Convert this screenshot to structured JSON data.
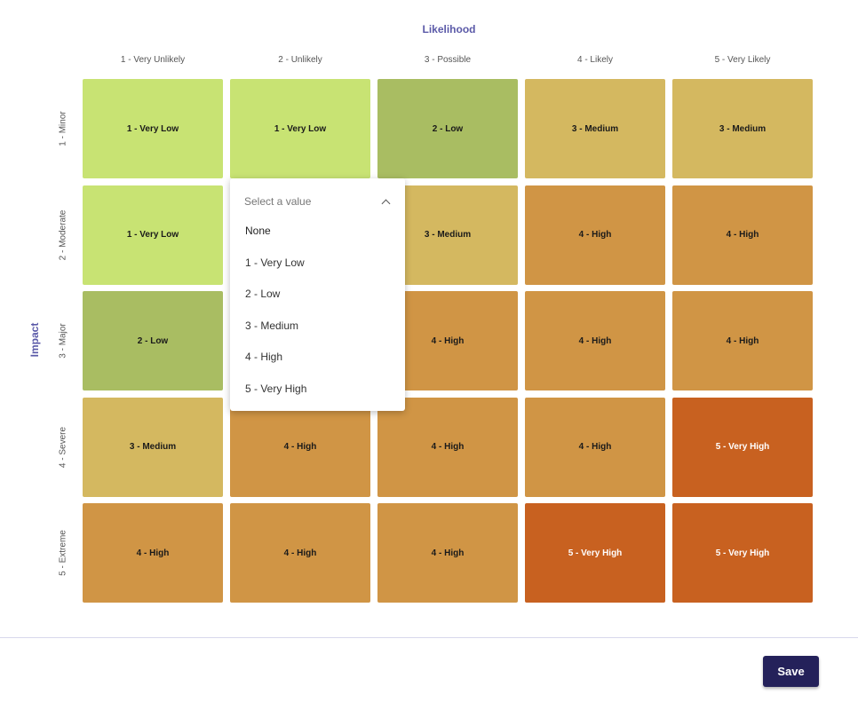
{
  "axis": {
    "x_title": "Likelihood",
    "y_title": "Impact"
  },
  "likelihood_levels": [
    "1 - Very Unlikely",
    "2 - Unlikely",
    "3 - Possible",
    "4 - Likely",
    "5 - Very Likely"
  ],
  "impact_levels": [
    "1 - Minor",
    "2 - Moderate",
    "3 - Major",
    "4 - Severe",
    "5 - Extreme"
  ],
  "colors": {
    "very_low": "#c8e373",
    "low": "#a9bd62",
    "medium": "#d4b860",
    "high": "#d09545",
    "very_high": "#c86120"
  },
  "matrix": [
    [
      {
        "label": "1 - Very Low",
        "color": "#c8e373"
      },
      {
        "label": "1 - Very Low",
        "color": "#c8e373"
      },
      {
        "label": "2 - Low",
        "color": "#a9bd62"
      },
      {
        "label": "3 - Medium",
        "color": "#d4b860"
      },
      {
        "label": "3 - Medium",
        "color": "#d4b860"
      }
    ],
    [
      {
        "label": "1 - Very Low",
        "color": "#c8e373"
      },
      {
        "label": "",
        "color": "#c8e373"
      },
      {
        "label": "3 - Medium",
        "color": "#d4b860"
      },
      {
        "label": "4 - High",
        "color": "#d09545"
      },
      {
        "label": "4 - High",
        "color": "#d09545"
      }
    ],
    [
      {
        "label": "2 - Low",
        "color": "#a9bd62"
      },
      {
        "label": "",
        "color": "#a9bd62"
      },
      {
        "label": "4 - High",
        "color": "#d09545"
      },
      {
        "label": "4 - High",
        "color": "#d09545"
      },
      {
        "label": "4 - High",
        "color": "#d09545"
      }
    ],
    [
      {
        "label": "3 - Medium",
        "color": "#d4b860"
      },
      {
        "label": "4 - High",
        "color": "#d09545"
      },
      {
        "label": "4 - High",
        "color": "#d09545"
      },
      {
        "label": "4 - High",
        "color": "#d09545"
      },
      {
        "label": "5 - Very High",
        "color": "#c86120"
      }
    ],
    [
      {
        "label": "4 - High",
        "color": "#d09545"
      },
      {
        "label": "4 - High",
        "color": "#d09545"
      },
      {
        "label": "4 - High",
        "color": "#d09545"
      },
      {
        "label": "5 - Very High",
        "color": "#c86120"
      },
      {
        "label": "5 - Very High",
        "color": "#c86120"
      }
    ]
  ],
  "dropdown": {
    "placeholder": "Select a value",
    "icon": "chevron-up-icon",
    "options": [
      "None",
      "1 - Very Low",
      "2 - Low",
      "3 - Medium",
      "4 - High",
      "5 - Very High"
    ]
  },
  "footer": {
    "save_label": "Save",
    "save_color": "#24215a"
  }
}
